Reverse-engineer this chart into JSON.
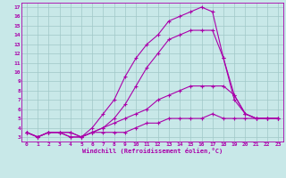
{
  "xlabel": "Windchill (Refroidissement éolien,°C)",
  "xlim": [
    -0.5,
    23.5
  ],
  "ylim": [
    2.5,
    17.5
  ],
  "xticks": [
    0,
    1,
    2,
    3,
    4,
    5,
    6,
    7,
    8,
    9,
    10,
    11,
    12,
    13,
    14,
    15,
    16,
    17,
    18,
    19,
    20,
    21,
    22,
    23
  ],
  "yticks": [
    3,
    4,
    5,
    6,
    7,
    8,
    9,
    10,
    11,
    12,
    13,
    14,
    15,
    16,
    17
  ],
  "bg_color": "#c8e8e8",
  "line_color": "#aa00aa",
  "grid_color": "#a0c8c8",
  "line1_x": [
    0,
    1,
    2,
    3,
    4,
    5,
    6,
    7,
    8,
    9,
    10,
    11,
    12,
    13,
    14,
    15,
    16,
    17,
    18,
    19,
    20,
    21,
    22,
    23
  ],
  "line1_y": [
    3.5,
    3.0,
    3.5,
    3.5,
    3.0,
    3.0,
    3.5,
    3.5,
    3.5,
    3.5,
    4.0,
    4.5,
    4.5,
    5.0,
    5.0,
    5.0,
    5.0,
    5.5,
    5.0,
    5.0,
    5.0,
    5.0,
    5.0,
    5.0
  ],
  "line2_x": [
    0,
    1,
    2,
    3,
    4,
    5,
    6,
    7,
    8,
    9,
    10,
    11,
    12,
    13,
    14,
    15,
    16,
    17,
    18,
    19,
    20,
    21,
    22,
    23
  ],
  "line2_y": [
    3.5,
    3.0,
    3.5,
    3.5,
    3.5,
    3.0,
    3.5,
    4.0,
    4.5,
    5.0,
    5.5,
    6.0,
    7.0,
    7.5,
    8.0,
    8.5,
    8.5,
    8.5,
    8.5,
    7.5,
    5.5,
    5.0,
    5.0,
    5.0
  ],
  "line3_x": [
    0,
    1,
    2,
    3,
    4,
    5,
    6,
    7,
    8,
    9,
    10,
    11,
    12,
    13,
    14,
    15,
    16,
    17,
    18,
    19,
    20,
    21,
    22,
    23
  ],
  "line3_y": [
    3.5,
    3.0,
    3.5,
    3.5,
    3.0,
    3.0,
    4.0,
    5.5,
    7.0,
    9.5,
    11.5,
    13.0,
    14.0,
    15.5,
    16.0,
    16.5,
    17.0,
    16.5,
    11.5,
    7.5,
    5.5,
    5.0,
    5.0,
    5.0
  ],
  "line4_x": [
    0,
    1,
    2,
    3,
    4,
    5,
    6,
    7,
    8,
    9,
    10,
    11,
    12,
    13,
    14,
    15,
    16,
    17,
    18,
    19,
    20,
    21,
    22,
    23
  ],
  "line4_y": [
    3.5,
    3.0,
    3.5,
    3.5,
    3.5,
    3.0,
    3.5,
    4.0,
    5.0,
    6.5,
    8.5,
    10.5,
    12.0,
    13.5,
    14.0,
    14.5,
    14.5,
    14.5,
    11.5,
    7.0,
    5.5,
    5.0,
    5.0,
    5.0
  ]
}
